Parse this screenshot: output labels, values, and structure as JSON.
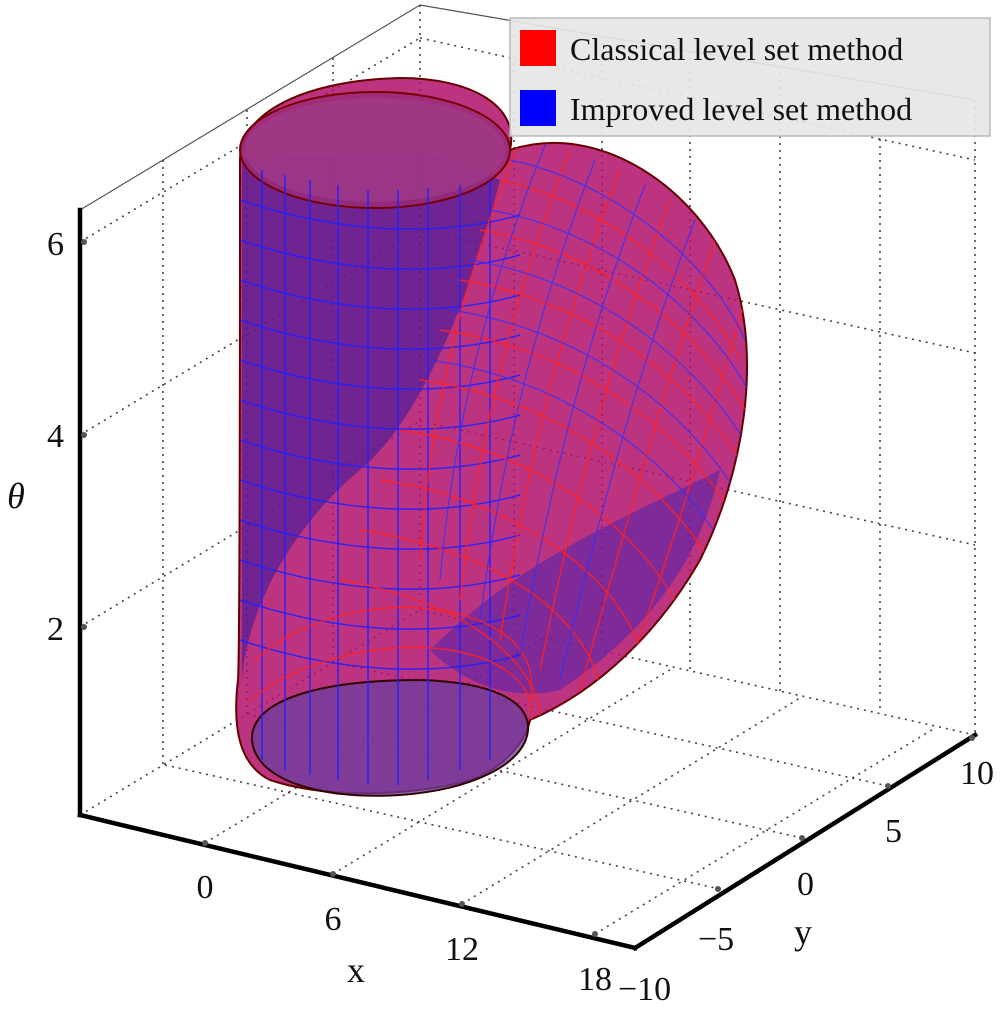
{
  "chart_data": {
    "type": "surface3d",
    "title": "",
    "axes": {
      "x": {
        "label": "x",
        "ticks": [
          0,
          6,
          12,
          18
        ]
      },
      "y": {
        "label": "y",
        "ticks": [
          -10,
          -5,
          0,
          5,
          10
        ]
      },
      "z": {
        "label": "θ",
        "ticks": [
          2,
          4,
          6
        ]
      }
    },
    "grid": true,
    "legend_position": "top-right",
    "series": [
      {
        "name": "Classical level set method",
        "color": "#ff0000"
      },
      {
        "name": "Improved level set method",
        "color": "#0000ff"
      }
    ]
  },
  "colors": {
    "classical": "#ff0000",
    "improved": "#0000ff",
    "legend_bg": "#e6e6e6"
  }
}
